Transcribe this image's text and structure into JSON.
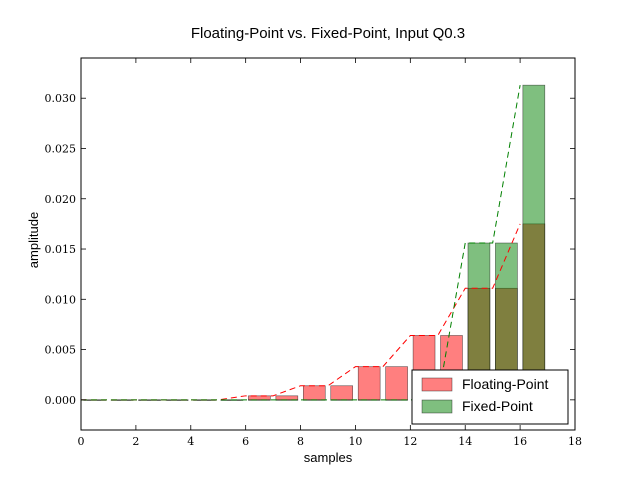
{
  "chart_data": {
    "type": "bar",
    "title": "Floating-Point vs. Fixed-Point, Input Q0.3",
    "xlabel": "samples",
    "ylabel": "amplitude",
    "xlim": [
      0,
      18
    ],
    "ylim": [
      -0.003,
      0.034
    ],
    "xticks": [
      "0",
      "2",
      "4",
      "6",
      "8",
      "10",
      "12",
      "14",
      "16",
      "18"
    ],
    "yticks": [
      "0.000",
      "0.005",
      "0.010",
      "0.015",
      "0.020",
      "0.025",
      "0.030"
    ],
    "legend_position": "bottom-right",
    "colors": {
      "float": "#ff0000",
      "fixed": "#008000"
    },
    "series": [
      {
        "name": "Floating-Point",
        "x": [
          0,
          1,
          2,
          3,
          4,
          5,
          6,
          7,
          8,
          9,
          10,
          11,
          12,
          13,
          14,
          15,
          16
        ],
        "values": [
          0,
          0,
          0,
          0,
          0,
          0,
          0.0004,
          0.0004,
          0.0014,
          0.0014,
          0.0033,
          0.0033,
          0.0064,
          0.0064,
          0.0111,
          0.0111,
          0.0175
        ]
      },
      {
        "name": "Fixed-Point",
        "x": [
          0,
          1,
          2,
          3,
          4,
          5,
          6,
          7,
          8,
          9,
          10,
          11,
          12,
          13,
          14,
          15,
          16
        ],
        "values": [
          0,
          0,
          0,
          0,
          0,
          0,
          0,
          0,
          0,
          0,
          0,
          0,
          0,
          0,
          0.0156,
          0.0156,
          0.0313
        ]
      }
    ]
  }
}
